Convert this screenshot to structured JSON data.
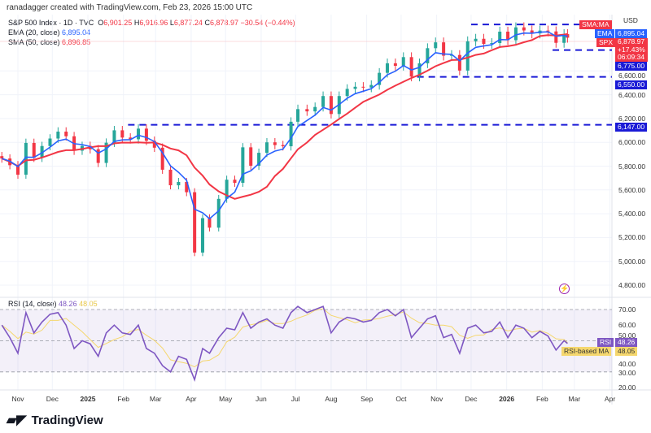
{
  "credit": "ranadagger created with TradingView.com, Feb 23, 2026 15:00 UTC",
  "legend": {
    "symbol": "S&P 500 Index · 1D · TVC",
    "o_label": "O",
    "o": "6,901.25",
    "h_label": "H",
    "h": "6,916.96",
    "l_label": "L",
    "l": "6,877.24",
    "c_label": "C",
    "c": "6,878.97",
    "change": "−30.54 (−0.44%)",
    "ema_label": "EMA (20, close)",
    "ema": "6,895.04",
    "sma_label": "SMA (50, close)",
    "sma": "6,896.85"
  },
  "rsi_legend": {
    "label": "RSI (14, close)",
    "rsi": "48.26",
    "ma": "48.05"
  },
  "price_axis": {
    "currency": "USD",
    "ticks": [
      "6,600.00",
      "6,400.00",
      "6,200.00",
      "6,000.00",
      "5,800.00",
      "5,600.00",
      "5,400.00",
      "5,200.00",
      "5,000.00",
      "4,800.00"
    ]
  },
  "rsi_axis": {
    "ticks": [
      "70.00",
      "60.00",
      "50.00",
      "40.00",
      "30.00",
      "20.00"
    ]
  },
  "tags": {
    "sma_ma": "SMA:MA",
    "ema": "EMA",
    "ema_val": "6,895.04",
    "spx": "SPX",
    "spx_val": "6,878.97",
    "spx_pct": "+17.43%",
    "spx_time": "06:09:34",
    "rsi": "RSI",
    "rsi_val": "48.26",
    "rsi_ma": "RSI-based MA",
    "rsi_ma_val": "48.05"
  },
  "levels": [
    {
      "value": 6147,
      "label": "6,147.00",
      "start": "2025-02-05"
    },
    {
      "value": 6550,
      "label": "6,550.00",
      "start": "2025-10-15"
    },
    {
      "value": 6775,
      "label": "6,775.00",
      "start": "2026-02-10"
    },
    {
      "value": 6990,
      "label": "",
      "start": "2025-12-01"
    }
  ],
  "x_axis": [
    "Nov",
    "Dec",
    "2025",
    "Feb",
    "Mar",
    "Apr",
    "May",
    "Jun",
    "Jul",
    "Aug",
    "Sep",
    "Oct",
    "Nov",
    "Dec",
    "2026",
    "Feb",
    "Mar",
    "Apr"
  ],
  "x_axis_dates": [
    "2024-11-01",
    "2024-12-01",
    "2025-01-01",
    "2025-02-01",
    "2025-03-01",
    "2025-04-01",
    "2025-05-01",
    "2025-06-01",
    "2025-07-01",
    "2025-08-01",
    "2025-09-01",
    "2025-10-01",
    "2025-11-01",
    "2025-12-01",
    "2026-01-01",
    "2026-02-01",
    "2026-03-01",
    "2026-04-01"
  ],
  "colors": {
    "up": "#26a69a",
    "down": "#f23645",
    "ema": "#2962ff",
    "sma": "#f23645",
    "rsi": "#7e57c2",
    "rsi_ma": "#f5d76e",
    "level": "#1a1ad6"
  },
  "brand": "TradingView",
  "chart_data": {
    "type": "candlestick",
    "title": "S&P 500 Index · 1D · TVC",
    "ylim": [
      4800,
      7000
    ],
    "rsi_ylim": [
      20,
      75
    ],
    "dates": [
      "2024-10-18",
      "2024-10-25",
      "2024-11-01",
      "2024-11-08",
      "2024-11-15",
      "2024-11-22",
      "2024-11-29",
      "2024-12-06",
      "2024-12-13",
      "2024-12-20",
      "2024-12-27",
      "2025-01-03",
      "2025-01-10",
      "2025-01-17",
      "2025-01-24",
      "2025-01-31",
      "2025-02-07",
      "2025-02-14",
      "2025-02-21",
      "2025-02-28",
      "2025-03-07",
      "2025-03-14",
      "2025-03-21",
      "2025-03-28",
      "2025-04-04",
      "2025-04-11",
      "2025-04-17",
      "2025-04-25",
      "2025-05-02",
      "2025-05-09",
      "2025-05-16",
      "2025-05-23",
      "2025-05-30",
      "2025-06-06",
      "2025-06-13",
      "2025-06-20",
      "2025-06-27",
      "2025-07-03",
      "2025-07-11",
      "2025-07-18",
      "2025-07-25",
      "2025-08-01",
      "2025-08-08",
      "2025-08-15",
      "2025-08-22",
      "2025-08-29",
      "2025-09-05",
      "2025-09-12",
      "2025-09-19",
      "2025-09-26",
      "2025-10-03",
      "2025-10-10",
      "2025-10-17",
      "2025-10-24",
      "2025-10-31",
      "2025-11-07",
      "2025-11-14",
      "2025-11-21",
      "2025-11-28",
      "2025-12-05",
      "2025-12-12",
      "2025-12-19",
      "2025-12-26",
      "2026-01-02",
      "2026-01-09",
      "2026-01-16",
      "2026-01-23",
      "2026-01-30",
      "2026-02-06",
      "2026-02-13",
      "2026-02-20",
      "2026-02-23"
    ],
    "close": [
      5864,
      5808,
      5728,
      5995,
      5870,
      5969,
      6032,
      6090,
      6051,
      5930,
      5970,
      5942,
      5827,
      5997,
      6101,
      6040,
      6026,
      6115,
      6013,
      5955,
      5770,
      5639,
      5667,
      5581,
      5074,
      5363,
      5283,
      5525,
      5686,
      5660,
      5958,
      5803,
      5912,
      6000,
      5977,
      5967,
      6173,
      6279,
      6260,
      6297,
      6389,
      6238,
      6389,
      6449,
      6467,
      6460,
      6482,
      6584,
      6664,
      6643,
      6716,
      6552,
      6664,
      6791,
      6840,
      6728,
      6734,
      6603,
      6849,
      6870,
      6827,
      6834,
      6930,
      6858,
      6966,
      6940,
      6915,
      6939,
      6932,
      6836,
      6909,
      6879
    ],
    "rsi": [
      60,
      52,
      42,
      68,
      55,
      62,
      67,
      68,
      60,
      45,
      50,
      48,
      40,
      55,
      60,
      55,
      54,
      60,
      45,
      42,
      34,
      30,
      40,
      38,
      25,
      45,
      42,
      52,
      58,
      57,
      68,
      58,
      62,
      64,
      60,
      58,
      68,
      72,
      68,
      70,
      72,
      55,
      62,
      65,
      64,
      62,
      63,
      68,
      70,
      66,
      70,
      52,
      58,
      64,
      66,
      52,
      54,
      42,
      58,
      60,
      55,
      56,
      62,
      52,
      60,
      58,
      52,
      56,
      53,
      44,
      50,
      48.26
    ]
  }
}
